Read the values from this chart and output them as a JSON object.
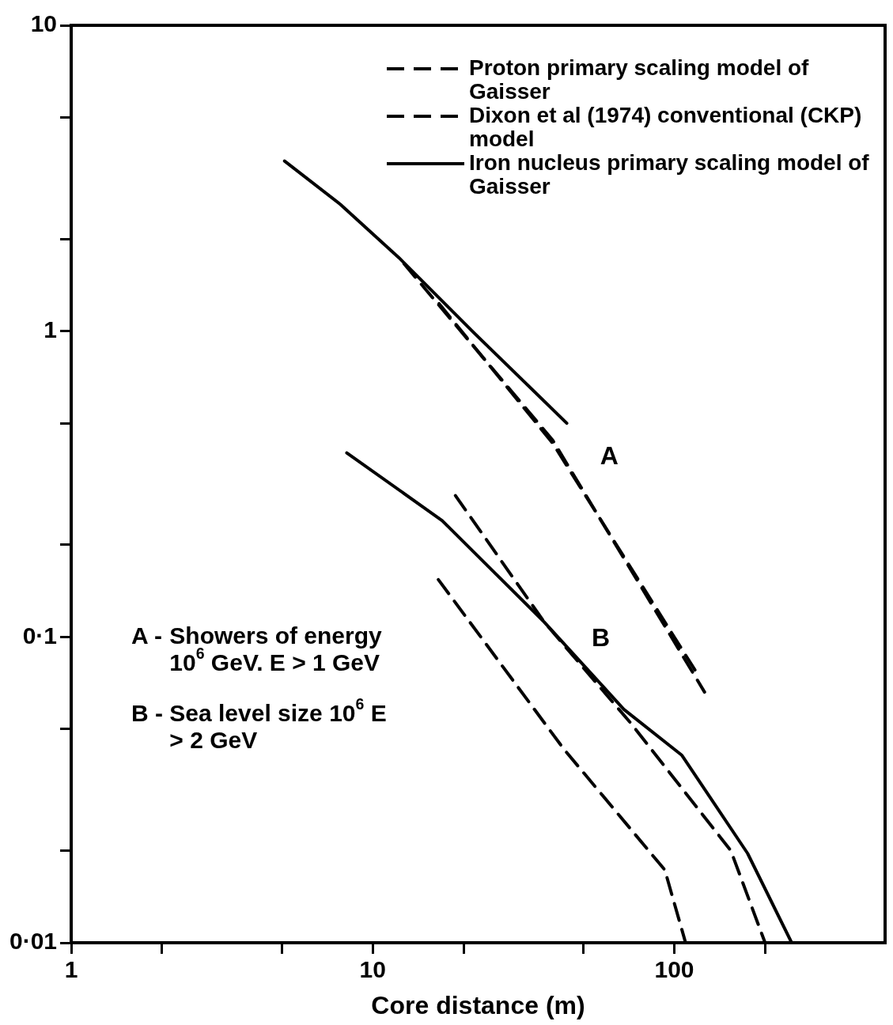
{
  "chart_data": {
    "type": "line",
    "xlabel": "Core distance (m)",
    "log": "xy",
    "grid": false,
    "legend": "top right",
    "marker": "none",
    "xlim": [
      1,
      500
    ],
    "ylim": [
      0.01,
      10
    ],
    "xticks": [
      {
        "value": 1,
        "label": "1"
      },
      {
        "value": 2,
        "label": null
      },
      {
        "value": 5,
        "label": null
      },
      {
        "value": 10,
        "label": "10"
      },
      {
        "value": 20,
        "label": null
      },
      {
        "value": 50,
        "label": null
      },
      {
        "value": 100,
        "label": "100"
      },
      {
        "value": 200,
        "label": null
      }
    ],
    "yticks": [
      {
        "value": 0.01,
        "label": "0·01"
      },
      {
        "value": 0.02,
        "label": null
      },
      {
        "value": 0.05,
        "label": null
      },
      {
        "value": 0.1,
        "label": "0·1"
      },
      {
        "value": 0.2,
        "label": null
      },
      {
        "value": 0.5,
        "label": null
      },
      {
        "value": 1,
        "label": "1"
      },
      {
        "value": 2,
        "label": null
      },
      {
        "value": 5,
        "label": null
      },
      {
        "value": 10,
        "label": "10"
      }
    ],
    "series": [
      {
        "name": "Proton primary scaling model of Gaisser",
        "color": "#000000",
        "line_style": "dashed",
        "x": [
          16.6,
          39.5,
          118
        ],
        "values": [
          1.23,
          0.43,
          0.077
        ]
      },
      {
        "name": "Dixon et al (1974) conventional (CKP) model",
        "color": "#000000",
        "line_style": "dashed",
        "x": [
          12.7,
          39.5,
          126
        ],
        "values": [
          1.66,
          0.44,
          0.066
        ]
      },
      {
        "name": "Iron nucleus primary scaling model of Gaisser",
        "color": "#000000",
        "line_style": "solid",
        "x": [
          5.1,
          7.8,
          12.2,
          21.6,
          44
        ],
        "values": [
          3.6,
          2.6,
          1.74,
          0.99,
          0.5
        ]
      },
      {
        "color": "#000000",
        "line_style": "dashed",
        "x": [
          16.5,
          43,
          93,
          109
        ],
        "values": [
          0.154,
          0.043,
          0.0173,
          0.01
        ]
      },
      {
        "color": "#000000",
        "line_style": "dashed",
        "x": [
          18.8,
          37,
          72,
          154,
          200
        ],
        "values": [
          0.29,
          0.112,
          0.052,
          0.02,
          0.01
        ]
      },
      {
        "color": "#000000",
        "line_style": "solid",
        "x": [
          8.2,
          17,
          37,
          68,
          106,
          175,
          245
        ],
        "values": [
          0.4,
          0.24,
          0.112,
          0.058,
          0.041,
          0.0196,
          0.01
        ]
      }
    ],
    "annotations": [
      {
        "text": "A",
        "x": 39.5,
        "y": 0.44
      },
      {
        "text": "B",
        "x": 37,
        "y": 0.112
      },
      "A - Showers of energy 10$^{6}$ GeV. E > 1 GeV",
      "B - Sea level size 10$^{6}$ E > 2 GeV"
    ]
  }
}
